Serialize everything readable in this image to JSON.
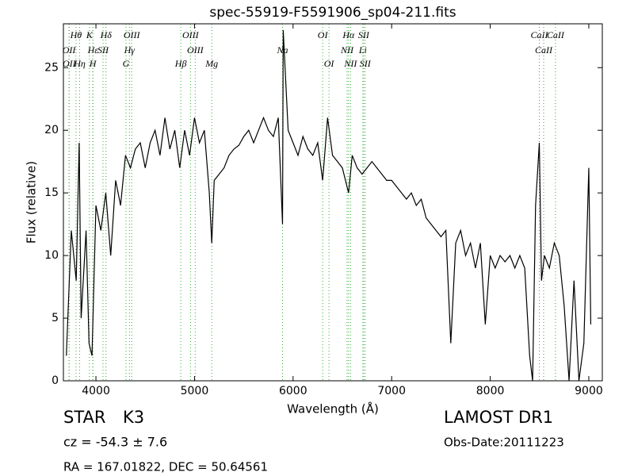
{
  "chart_data": {
    "type": "line",
    "title": "spec-55919-F5591906_sp04-211.fits",
    "x_label": "Wavelength (Å)",
    "y_label": "Flux (relative)",
    "xlim": [
      3670,
      9137
    ],
    "ylim": [
      0,
      28.5
    ],
    "xticks": [
      4000,
      5000,
      6000,
      7000,
      8000,
      9000
    ],
    "yticks": [
      0,
      5,
      10,
      15,
      20,
      25
    ],
    "color": "#000000",
    "line_color": "#33aa33",
    "x": [
      3700,
      3750,
      3800,
      3830,
      3850,
      3900,
      3930,
      3960,
      4000,
      4050,
      4100,
      4150,
      4200,
      4250,
      4300,
      4350,
      4400,
      4450,
      4500,
      4550,
      4600,
      4650,
      4700,
      4750,
      4800,
      4850,
      4900,
      4950,
      5000,
      5050,
      5100,
      5150,
      5175,
      5200,
      5250,
      5300,
      5350,
      5400,
      5450,
      5500,
      5550,
      5600,
      5650,
      5700,
      5750,
      5800,
      5850,
      5893,
      5900,
      5950,
      6000,
      6050,
      6100,
      6150,
      6200,
      6250,
      6300,
      6350,
      6400,
      6450,
      6500,
      6563,
      6600,
      6650,
      6700,
      6750,
      6800,
      6850,
      6900,
      6950,
      7000,
      7050,
      7100,
      7150,
      7200,
      7250,
      7300,
      7350,
      7400,
      7450,
      7500,
      7550,
      7600,
      7650,
      7700,
      7750,
      7800,
      7850,
      7900,
      7950,
      8000,
      8050,
      8100,
      8150,
      8200,
      8250,
      8300,
      8350,
      8400,
      8430,
      8460,
      8498,
      8520,
      8550,
      8600,
      8650,
      8700,
      8750,
      8800,
      8850,
      8900,
      8950,
      9000,
      9020
    ],
    "values": [
      2,
      12,
      8,
      19,
      5,
      12,
      3,
      2,
      14,
      12,
      15,
      10,
      16,
      14,
      18,
      17,
      18.5,
      19,
      17,
      19,
      20,
      18,
      21,
      18.5,
      20,
      17,
      20,
      18,
      21,
      19,
      20,
      15,
      11,
      16,
      16.5,
      17,
      18,
      18.5,
      18.8,
      19.5,
      20,
      19,
      20,
      21,
      20,
      19.5,
      21,
      12.5,
      28,
      20,
      19,
      18,
      19.5,
      18.5,
      18,
      19,
      16,
      21,
      18,
      17.5,
      17,
      15,
      18,
      17,
      16.5,
      17,
      17.5,
      17,
      16.5,
      16,
      16,
      15.5,
      15,
      14.5,
      15,
      14,
      14.5,
      13,
      12.5,
      12,
      11.5,
      12,
      3,
      11,
      12,
      10,
      11,
      9,
      11,
      4.5,
      10,
      9,
      10,
      9.5,
      10,
      9,
      10,
      9,
      2,
      0,
      14,
      19,
      8,
      10,
      9,
      11,
      10,
      6,
      0,
      8,
      0,
      3,
      17,
      4.5
    ],
    "lines": [
      {
        "name": "Hθ",
        "wavelength": 3798
      },
      {
        "name": "K",
        "wavelength": 3934
      },
      {
        "name": "Hδ",
        "wavelength": 4102
      },
      {
        "name": "OIII",
        "wavelength": 4363
      },
      {
        "name": "OIII",
        "wavelength": 4959
      },
      {
        "name": "OI",
        "wavelength": 6300
      },
      {
        "name": "Hα",
        "wavelength": 6563
      },
      {
        "name": "SII",
        "wavelength": 6716
      },
      {
        "name": "CaII",
        "wavelength": 8498
      },
      {
        "name": "OII",
        "wavelength": 3727
      },
      {
        "name": "Hε",
        "wavelength": 3970
      },
      {
        "name": "SII",
        "wavelength": 4072
      },
      {
        "name": "Hγ",
        "wavelength": 4340
      },
      {
        "name": "OIII",
        "wavelength": 5007
      },
      {
        "name": "Na",
        "wavelength": 5893
      },
      {
        "name": "NII",
        "wavelength": 6548
      },
      {
        "name": "Li",
        "wavelength": 6708
      },
      {
        "name": "CaII",
        "wavelength": 8542
      },
      {
        "name": "OII",
        "wavelength": 3729
      },
      {
        "name": "Hη",
        "wavelength": 3835
      },
      {
        "name": "H",
        "wavelength": 3968
      },
      {
        "name": "G",
        "wavelength": 4305
      },
      {
        "name": "Hβ",
        "wavelength": 4861
      },
      {
        "name": "Mg",
        "wavelength": 5175
      },
      {
        "name": "OI",
        "wavelength": 6364
      },
      {
        "name": "NII",
        "wavelength": 6583
      },
      {
        "name": "SII",
        "wavelength": 6731
      },
      {
        "name": "CaII",
        "wavelength": 8662
      }
    ],
    "object_class": "STAR",
    "subclass": "K3",
    "survey": "LAMOST DR1",
    "redshift": "cz = -54.3 ± 7.6",
    "obs_date": "Obs-Date:20111223",
    "coordinates": "RA = 167.01822, DEC = 50.64561"
  }
}
